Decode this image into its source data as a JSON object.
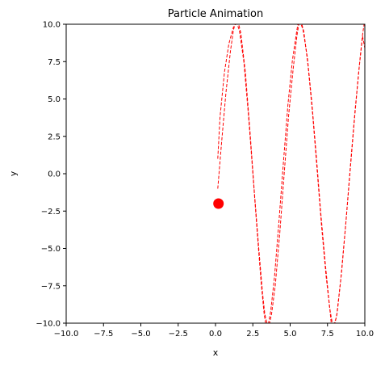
{
  "chart_data": {
    "type": "line",
    "title": "Particle Animation",
    "xlabel": "x",
    "ylabel": "y",
    "xlim": [
      -10.0,
      10.0
    ],
    "ylim": [
      -10.0,
      10.0
    ],
    "grid": false,
    "x_ticks": [
      "−10.0",
      "−7.5",
      "−5.0",
      "−2.5",
      "0.0",
      "2.5",
      "5.0",
      "7.5",
      "10.0"
    ],
    "y_ticks": [
      "10.0",
      "7.5",
      "5.0",
      "2.5",
      "0.0",
      "−2.5",
      "−5.0",
      "−7.5",
      "−10.0"
    ],
    "x_tick_values": [
      -10.0,
      -7.5,
      -5.0,
      -2.5,
      0.0,
      2.5,
      5.0,
      7.5,
      10.0
    ],
    "y_tick_values": [
      10.0,
      7.5,
      5.0,
      2.5,
      0.0,
      -2.5,
      -5.0,
      -7.5,
      -10.0
    ],
    "colors": {
      "trail": "#ff0000",
      "particle": "#ff0000",
      "axes": "#000000"
    },
    "series": [
      {
        "style": "dashed",
        "points": [
          [
            0.15,
            1.0
          ],
          [
            0.3,
            3.8
          ],
          [
            0.6,
            6.8
          ],
          [
            0.9,
            8.7
          ],
          [
            1.2,
            9.8
          ],
          [
            1.35,
            10.0
          ],
          [
            1.55,
            10.0
          ],
          [
            1.7,
            9.4
          ],
          [
            2.0,
            6.8
          ],
          [
            2.3,
            3.0
          ],
          [
            2.6,
            -1.2
          ],
          [
            2.9,
            -5.0
          ],
          [
            3.15,
            -8.0
          ],
          [
            3.3,
            -9.4
          ],
          [
            3.45,
            -10.0
          ],
          [
            3.62,
            -10.0
          ],
          [
            3.75,
            -9.4
          ],
          [
            4.0,
            -7.5
          ],
          [
            4.3,
            -4.0
          ],
          [
            4.6,
            0.0
          ],
          [
            4.9,
            3.9
          ],
          [
            5.2,
            7.0
          ],
          [
            5.45,
            9.2
          ],
          [
            5.58,
            10.0
          ],
          [
            5.78,
            10.0
          ],
          [
            5.92,
            9.5
          ],
          [
            6.2,
            7.2
          ],
          [
            6.5,
            4.0
          ],
          [
            6.8,
            0.3
          ],
          [
            7.1,
            -3.5
          ],
          [
            7.4,
            -6.8
          ],
          [
            7.65,
            -9.0
          ],
          [
            7.82,
            -10.0
          ],
          [
            8.0,
            -10.0
          ],
          [
            8.15,
            -9.3
          ],
          [
            8.45,
            -6.5
          ],
          [
            8.75,
            -3.0
          ],
          [
            9.05,
            0.7
          ],
          [
            9.35,
            4.3
          ],
          [
            9.65,
            7.4
          ],
          [
            9.85,
            9.3
          ],
          [
            9.95,
            10.0
          ]
        ]
      },
      {
        "style": "dashed",
        "points": [
          [
            0.15,
            -1.0
          ],
          [
            0.4,
            2.0
          ],
          [
            0.7,
            5.4
          ],
          [
            1.0,
            8.2
          ],
          [
            1.2,
            9.6
          ],
          [
            1.3,
            10.0
          ],
          [
            1.45,
            10.0
          ],
          [
            1.6,
            9.6
          ],
          [
            1.9,
            7.5
          ],
          [
            2.2,
            4.0
          ],
          [
            2.5,
            0.0
          ],
          [
            2.8,
            -4.0
          ],
          [
            3.05,
            -7.2
          ],
          [
            3.25,
            -9.3
          ],
          [
            3.35,
            -10.0
          ],
          [
            3.55,
            -10.0
          ],
          [
            3.7,
            -9.2
          ],
          [
            3.95,
            -6.9
          ],
          [
            4.25,
            -3.2
          ],
          [
            4.55,
            0.8
          ],
          [
            4.85,
            4.6
          ],
          [
            5.15,
            7.6
          ],
          [
            5.45,
            9.6
          ],
          [
            5.52,
            10.0
          ],
          [
            5.72,
            10.0
          ],
          [
            5.85,
            9.7
          ],
          [
            6.15,
            7.8
          ],
          [
            6.45,
            4.8
          ],
          [
            6.75,
            1.2
          ],
          [
            7.05,
            -2.6
          ],
          [
            7.35,
            -6.0
          ],
          [
            7.6,
            -8.5
          ],
          [
            7.75,
            -10.0
          ],
          [
            7.95,
            -10.0
          ],
          [
            8.1,
            -9.6
          ],
          [
            8.4,
            -7.0
          ],
          [
            8.7,
            -3.7
          ],
          [
            9.0,
            0.0
          ],
          [
            9.3,
            3.6
          ],
          [
            9.6,
            6.9
          ],
          [
            9.85,
            9.2
          ],
          [
            10.0,
            8.4
          ]
        ]
      }
    ],
    "particle": {
      "x": 0.2,
      "y": -2.0
    }
  }
}
